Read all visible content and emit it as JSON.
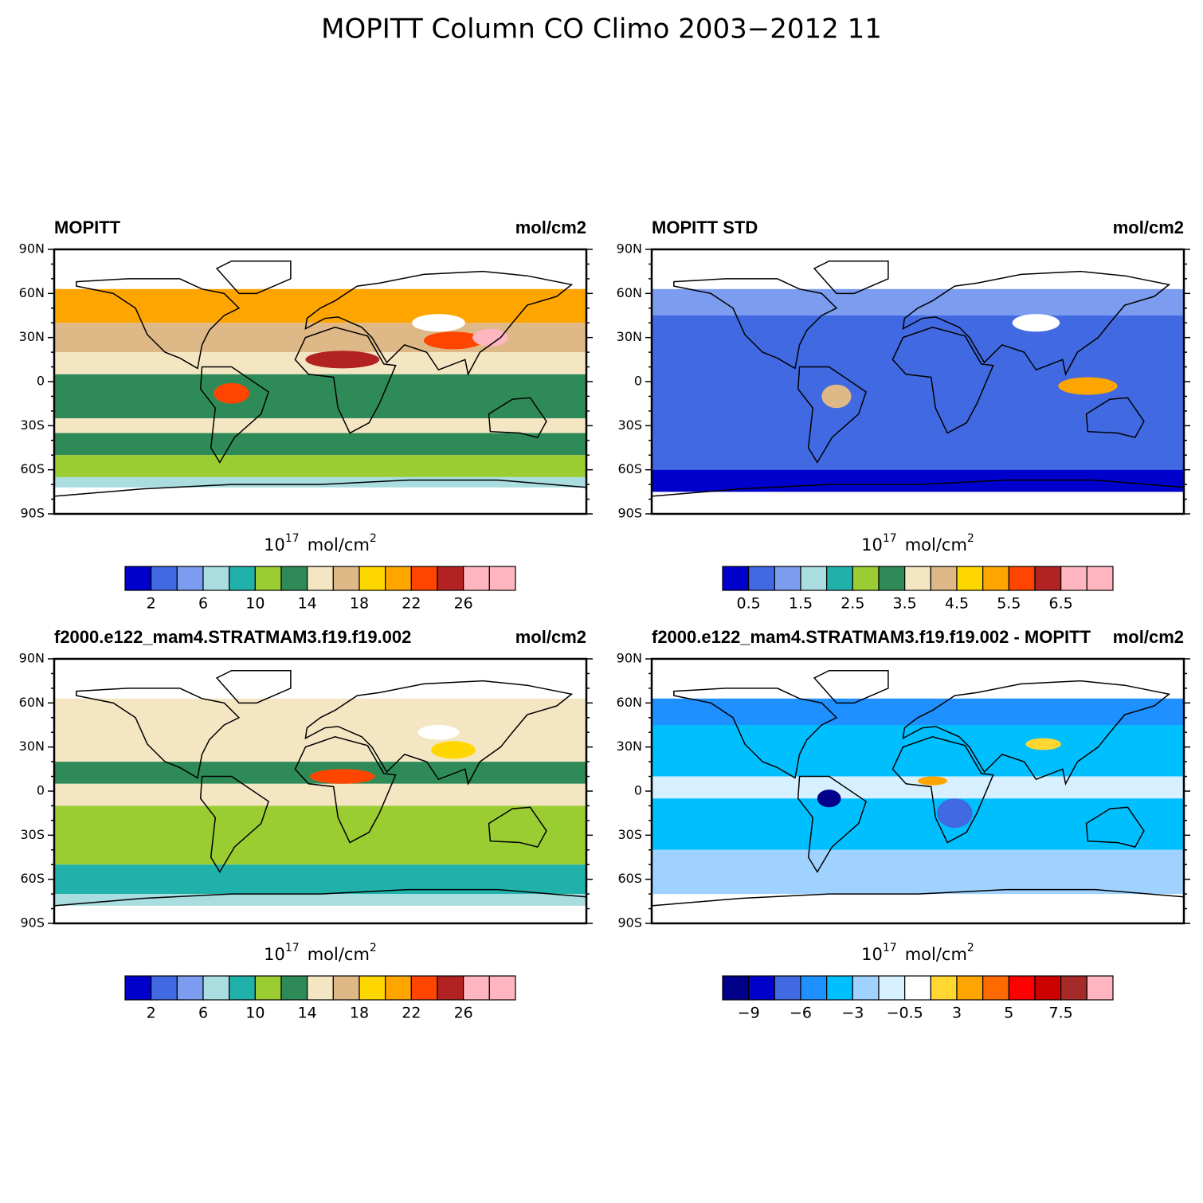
{
  "title": "MOPITT Column CO Climo 2003−2012 11",
  "panels": [
    {
      "left_title": "MOPITT",
      "right_title": "mol/cm2",
      "lat_ticks": [
        "90N",
        "60N",
        "30N",
        "0",
        "30S",
        "60S",
        "90S"
      ],
      "units": {
        "base": "10",
        "exponent": "17",
        "unit": "mol/cm",
        "unit_exponent": "2"
      },
      "colorbar": {
        "colors": [
          "#0000cd",
          "#4169e1",
          "#7b9cef",
          "#a9dde0",
          "#20b2aa",
          "#9acd32",
          "#2e8b57",
          "#f5e6c3",
          "#deb887",
          "#ffd700",
          "#ffa500",
          "#ff4500",
          "#b22222",
          "#ffb6c1",
          "#ffb6c1"
        ],
        "labels": [
          "2",
          "6",
          "10",
          "14",
          "18",
          "22",
          "26"
        ]
      }
    },
    {
      "left_title": "MOPITT STD",
      "right_title": "mol/cm2",
      "lat_ticks": [
        "90N",
        "60N",
        "30N",
        "0",
        "30S",
        "60S",
        "90S"
      ],
      "units": {
        "base": "10",
        "exponent": "17",
        "unit": "mol/cm",
        "unit_exponent": "2"
      },
      "colorbar": {
        "colors": [
          "#0000cd",
          "#4169e1",
          "#7b9cef",
          "#a9dde0",
          "#20b2aa",
          "#9acd32",
          "#2e8b57",
          "#f5e6c3",
          "#deb887",
          "#ffd700",
          "#ffa500",
          "#ff4500",
          "#b22222",
          "#ffb6c1",
          "#ffb6c1"
        ],
        "labels": [
          "0.5",
          "1.5",
          "2.5",
          "3.5",
          "4.5",
          "5.5",
          "6.5"
        ]
      }
    },
    {
      "left_title": "f2000.e122_mam4.STRATMAM3.f19.f19.002",
      "right_title": "mol/cm2",
      "lat_ticks": [
        "90N",
        "60N",
        "30N",
        "0",
        "30S",
        "60S",
        "90S"
      ],
      "units": {
        "base": "10",
        "exponent": "17",
        "unit": "mol/cm",
        "unit_exponent": "2"
      },
      "colorbar": {
        "colors": [
          "#0000cd",
          "#4169e1",
          "#7b9cef",
          "#a9dde0",
          "#20b2aa",
          "#9acd32",
          "#2e8b57",
          "#f5e6c3",
          "#deb887",
          "#ffd700",
          "#ffa500",
          "#ff4500",
          "#b22222",
          "#ffb6c1",
          "#ffb6c1"
        ],
        "labels": [
          "2",
          "6",
          "10",
          "14",
          "18",
          "22",
          "26"
        ]
      }
    },
    {
      "left_title": "f2000.e122_mam4.STRATMAM3.f19.f19.002 - MOPITT",
      "right_title": "mol/cm2",
      "lat_ticks": [
        "90N",
        "60N",
        "30N",
        "0",
        "30S",
        "60S",
        "90S"
      ],
      "units": {
        "base": "10",
        "exponent": "17",
        "unit": "mol/cm",
        "unit_exponent": "2"
      },
      "colorbar": {
        "colors": [
          "#00008b",
          "#0000cd",
          "#4169e1",
          "#1e90ff",
          "#00bfff",
          "#a0d2ff",
          "#d6f0ff",
          "#ffffff",
          "#ffd730",
          "#ffa500",
          "#ff6a00",
          "#ff0000",
          "#cd0000",
          "#a52a2a",
          "#ffb6c1"
        ],
        "labels": [
          "−9",
          "−6",
          "−3",
          "−0.5",
          "3",
          "5",
          "7.5"
        ]
      }
    }
  ]
}
